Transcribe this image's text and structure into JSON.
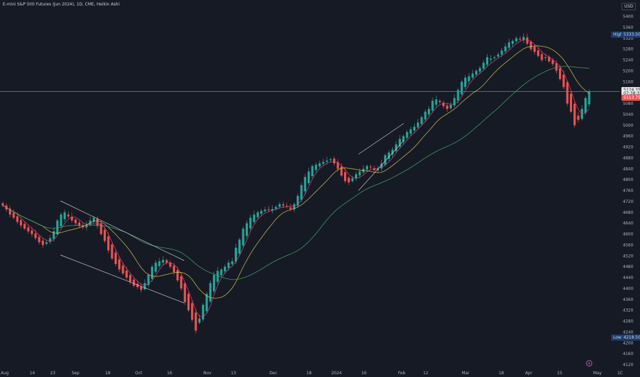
{
  "header": {
    "title": "E-mini S&P 500 Futures (Jun 2024), 1D, CME, Heikin Ashi",
    "currency": "USD"
  },
  "price_tags": {
    "high_label": "High",
    "high_value": "5333.50",
    "low_label": "Low",
    "low_value": "4218.50",
    "last_price": "5124.25",
    "countdown": "07:38:33",
    "prev_price": "5113.75"
  },
  "colors": {
    "background": "#161a25",
    "up": "#26a69a",
    "down": "#ef5350",
    "ma_fast": "#e0407a",
    "ma_mid": "#d8c24a",
    "ma_slow": "#3fa86b",
    "trendline": "#c8c8c8",
    "high_tag": "#1e3d6f",
    "low_tag": "#1e3d6f"
  },
  "chart_data": {
    "type": "candlestick",
    "y_ticks": [
      4120,
      4160,
      4200,
      4240,
      4280,
      4320,
      4360,
      4400,
      4440,
      4480,
      4520,
      4560,
      4600,
      4640,
      4680,
      4720,
      4760,
      4800,
      4840,
      4880,
      4920,
      4960,
      5000,
      5040,
      5080,
      5120,
      5160,
      5200,
      5240,
      5280,
      5320,
      5360,
      5400
    ],
    "x_ticks": [
      "Aug",
      "14",
      "23",
      "Sep",
      "18",
      "Oct",
      "16",
      "Nov",
      "13",
      "Dec",
      "18",
      "2024",
      "16",
      "Feb",
      "12",
      "Mar",
      "18",
      "Apr",
      "15",
      "May",
      "1C"
    ],
    "close_path": [
      4705,
      4690,
      4672,
      4660,
      4645,
      4632,
      4620,
      4610,
      4600,
      4585,
      4570,
      4560,
      4570,
      4585,
      4610,
      4650,
      4672,
      4680,
      4665,
      4650,
      4640,
      4630,
      4625,
      4635,
      4650,
      4660,
      4630,
      4600,
      4575,
      4540,
      4510,
      4490,
      4470,
      4455,
      4440,
      4425,
      4410,
      4405,
      4395,
      4420,
      4450,
      4480,
      4495,
      4500,
      4505,
      4495,
      4480,
      4460,
      4430,
      4400,
      4350,
      4320,
      4285,
      4245,
      4290,
      4340,
      4380,
      4420,
      4450,
      4465,
      4470,
      4480,
      4495,
      4500,
      4550,
      4580,
      4620,
      4640,
      4660,
      4672,
      4680,
      4685,
      4690,
      4688,
      4692,
      4700,
      4710,
      4705,
      4700,
      4692,
      4710,
      4740,
      4780,
      4810,
      4830,
      4850,
      4855,
      4860,
      4865,
      4870,
      4875,
      4860,
      4840,
      4815,
      4795,
      4790,
      4805,
      4820,
      4830,
      4840,
      4850,
      4845,
      4835,
      4840,
      4860,
      4890,
      4900,
      4910,
      4930,
      4950,
      4960,
      4975,
      4985,
      4995,
      5010,
      5030,
      5050,
      5060,
      5090,
      5095,
      5085,
      5070,
      5060,
      5075,
      5100,
      5130,
      5160,
      5175,
      5180,
      5190,
      5200,
      5210,
      5230,
      5250,
      5245,
      5250,
      5260,
      5275,
      5290,
      5305,
      5310,
      5320,
      5315,
      5325,
      5300,
      5280,
      5270,
      5255,
      5240,
      5250,
      5235,
      5225,
      5200,
      5170,
      5140,
      5080,
      5050,
      5000,
      5020,
      5060,
      5100,
      5124
    ],
    "last": 5124.25,
    "high": 5333.5,
    "low": 4218.5,
    "moving_averages": [
      "fast",
      "mid",
      "slow"
    ],
    "grid": false
  }
}
